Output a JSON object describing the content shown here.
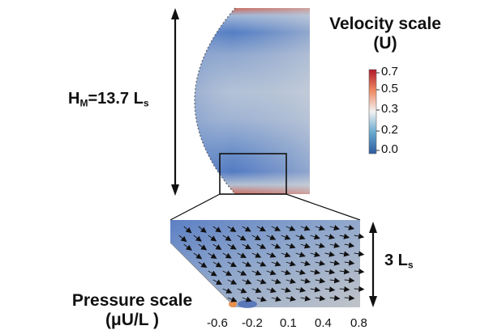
{
  "top_annotation": {
    "height_label_main": "H",
    "height_label_sub": "M",
    "height_label_mid": "=13.7 L",
    "height_label_unit_sub": "s"
  },
  "inset_annotation": {
    "length_label_main": "3 L",
    "length_label_sub": "s"
  },
  "velocity_scale": {
    "title_line1": "Velocity scale",
    "title_line2": "(U)",
    "ticks": [
      "0.7",
      "0.5",
      "0.3",
      "0.2",
      "0.0"
    ],
    "colors": [
      "#b2182b",
      "#ef8a62",
      "#f7f7f7",
      "#67a9cf",
      "#2c5aa0"
    ]
  },
  "pressure_scale": {
    "title_line1": "Pressure scale",
    "title_line2": "(μU/L )",
    "ticks": [
      "-0.6",
      "-0.2",
      "0.1",
      "0.4",
      "0.8"
    ]
  },
  "colors": {
    "field_blue": "#4f77c4",
    "field_light": "#c6d0dc",
    "field_red": "#d6573f",
    "inset_gray": "#b9bcc0",
    "arrow": "#111111"
  }
}
